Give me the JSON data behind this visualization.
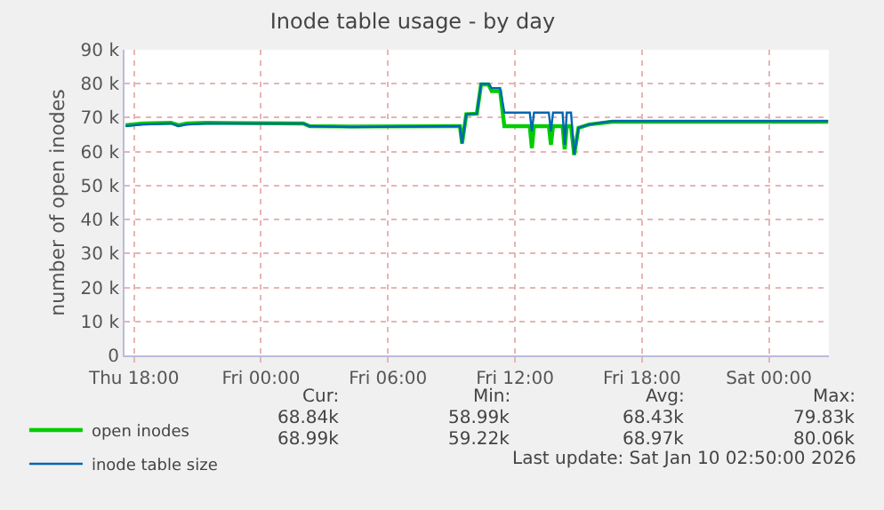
{
  "chart_data": {
    "type": "line",
    "title": "Inode table usage - by day",
    "ylabel": "number of open inodes",
    "xlim": [
      "2026-01-08T17:33",
      "2026-01-10T02:50"
    ],
    "xticks": [
      {
        "value": "2026-01-08T18:00",
        "label": "Thu 18:00"
      },
      {
        "value": "2026-01-09T00:00",
        "label": "Fri 00:00"
      },
      {
        "value": "2026-01-09T06:00",
        "label": "Fri 06:00"
      },
      {
        "value": "2026-01-09T12:00",
        "label": "Fri 12:00"
      },
      {
        "value": "2026-01-09T18:00",
        "label": "Fri 18:00"
      },
      {
        "value": "2026-01-10T00:00",
        "label": "Sat 00:00"
      }
    ],
    "ylim": [
      0,
      90000
    ],
    "yticks": [
      0,
      {
        "value": 10000,
        "label": "10 k"
      },
      {
        "value": 20000,
        "label": "20 k"
      },
      {
        "value": 30000,
        "label": "30 k"
      },
      {
        "value": 40000,
        "label": "40 k"
      },
      {
        "value": 50000,
        "label": "50 k"
      },
      {
        "value": 60000,
        "label": "60 k"
      },
      {
        "value": 70000,
        "label": "70 k"
      },
      {
        "value": 80000,
        "label": "80 k"
      },
      {
        "value": 90000,
        "label": "90 k"
      }
    ],
    "grid": true,
    "legend": "bottom left",
    "marker": "none",
    "line_style": "solid",
    "series": [
      {
        "name": "open inodes",
        "color": "#00cc00",
        "x": [
          "2026-01-08T17:36",
          "2026-01-08T18:24",
          "2026-01-08T19:45",
          "2026-01-08T20:06",
          "2026-01-08T20:30",
          "2026-01-08T21:24",
          "2026-01-09T02:00",
          "2026-01-09T02:18",
          "2026-01-09T04:15",
          "2026-01-09T09:24",
          "2026-01-09T09:30",
          "2026-01-09T09:42",
          "2026-01-09T10:12",
          "2026-01-09T10:24",
          "2026-01-09T10:45",
          "2026-01-09T10:54",
          "2026-01-09T11:18",
          "2026-01-09T11:30",
          "2026-01-09T12:42",
          "2026-01-09T12:48",
          "2026-01-09T12:54",
          "2026-01-09T13:36",
          "2026-01-09T13:42",
          "2026-01-09T13:48",
          "2026-01-09T14:15",
          "2026-01-09T14:21",
          "2026-01-09T14:27",
          "2026-01-09T14:39",
          "2026-01-09T14:48",
          "2026-01-09T15:00",
          "2026-01-09T15:30",
          "2026-01-09T16:36",
          "2026-01-10T02:48"
        ],
        "values": [
          67800,
          68300,
          68500,
          67800,
          68300,
          68500,
          68300,
          67500,
          67400,
          67500,
          62400,
          71000,
          71200,
          79800,
          79800,
          77800,
          77800,
          67500,
          67500,
          61000,
          67500,
          67500,
          62000,
          67500,
          67500,
          60700,
          67500,
          67500,
          59000,
          67000,
          68000,
          68800,
          68800
        ]
      },
      {
        "name": "inode table size",
        "color": "#0066b3",
        "x": [
          "2026-01-08T17:36",
          "2026-01-08T18:24",
          "2026-01-08T19:45",
          "2026-01-08T20:06",
          "2026-01-08T20:30",
          "2026-01-08T21:24",
          "2026-01-09T02:00",
          "2026-01-09T02:18",
          "2026-01-09T04:15",
          "2026-01-09T09:24",
          "2026-01-09T09:30",
          "2026-01-09T09:42",
          "2026-01-09T10:12",
          "2026-01-09T10:24",
          "2026-01-09T10:45",
          "2026-01-09T10:54",
          "2026-01-09T11:18",
          "2026-01-09T11:30",
          "2026-01-09T12:42",
          "2026-01-09T12:48",
          "2026-01-09T12:54",
          "2026-01-09T13:36",
          "2026-01-09T13:42",
          "2026-01-09T13:48",
          "2026-01-09T14:15",
          "2026-01-09T14:21",
          "2026-01-09T14:27",
          "2026-01-09T14:39",
          "2026-01-09T14:48",
          "2026-01-09T15:00",
          "2026-01-09T15:30",
          "2026-01-09T16:36",
          "2026-01-10T02:48"
        ],
        "values": [
          67500,
          68000,
          68300,
          67500,
          68000,
          68300,
          68300,
          67500,
          67200,
          67500,
          62400,
          71000,
          71200,
          80000,
          80000,
          78700,
          78700,
          71500,
          71500,
          66000,
          71500,
          71500,
          66000,
          71500,
          71500,
          62000,
          71500,
          71500,
          59200,
          67000,
          68000,
          69000,
          69000
        ]
      }
    ],
    "annotations": [
      "Cur:",
      "Min:",
      "Avg:",
      "Max:",
      "68.84k",
      "58.99k",
      "68.43k",
      "79.83k",
      "68.99k",
      "59.22k",
      "68.97k",
      "80.06k",
      "Last update: Sat Jan 10 02:50:00 2026"
    ]
  }
}
